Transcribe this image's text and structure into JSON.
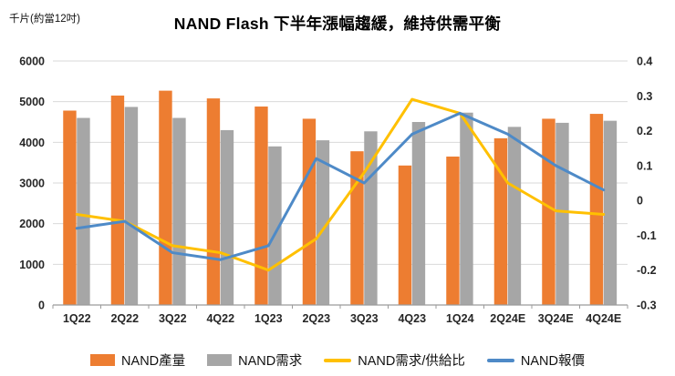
{
  "page": {
    "title": "NAND Flash 下半年漲幅趨緩，維持供需平衡",
    "unit_label": "千片(約當12吋)"
  },
  "chart_data": {
    "type": "bar",
    "subtype": "combo-bar-line",
    "title": "NAND Flash 下半年漲幅趨緩，維持供需平衡",
    "left_axis_unit": "千片(約當12吋)",
    "categories": [
      "1Q22",
      "2Q22",
      "3Q22",
      "4Q22",
      "1Q23",
      "2Q23",
      "3Q23",
      "4Q23",
      "1Q24",
      "2Q24E",
      "3Q24E",
      "4Q24E"
    ],
    "series": [
      {
        "name": "NAND產量",
        "type": "bar",
        "axis": "left",
        "color": "#ED7D31",
        "values": [
          4780,
          5150,
          5270,
          5080,
          4880,
          4580,
          3780,
          3430,
          3650,
          4100,
          4580,
          4700
        ]
      },
      {
        "name": "NAND需求",
        "type": "bar",
        "axis": "left",
        "color": "#A6A6A6",
        "values": [
          4600,
          4870,
          4600,
          4300,
          3900,
          4050,
          4270,
          4500,
          4730,
          4380,
          4480,
          4530
        ]
      },
      {
        "name": "NAND需求/供給比",
        "type": "line",
        "axis": "right",
        "color": "#FFC000",
        "values": [
          -0.04,
          -0.06,
          -0.13,
          -0.15,
          -0.2,
          -0.11,
          0.08,
          0.29,
          0.25,
          0.05,
          -0.03,
          -0.04
        ]
      },
      {
        "name": "NAND報價",
        "type": "line",
        "axis": "right",
        "color": "#4E8AC7",
        "values": [
          -0.08,
          -0.06,
          -0.15,
          -0.17,
          -0.13,
          0.12,
          0.05,
          0.19,
          0.25,
          0.19,
          0.1,
          0.03
        ]
      }
    ],
    "left_axis": {
      "min": 0,
      "max": 6000,
      "step": 1000
    },
    "right_axis": {
      "min": -0.3,
      "max": 0.4,
      "step": 0.1
    },
    "grid": true,
    "legend_position": "bottom",
    "colors": {
      "grid": "#d9d9d9",
      "axis": "#9b9b9b",
      "tick_text": "#262626"
    }
  }
}
